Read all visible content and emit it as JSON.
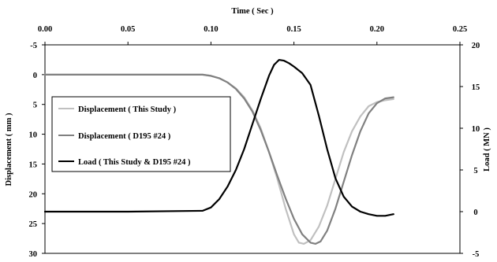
{
  "chart_data": {
    "type": "line",
    "xlabel": "Time ( Sec )",
    "ylabel": "Displacement ( mm )",
    "y2label": "Load ( MN )",
    "xlim": [
      0,
      0.25
    ],
    "ylim": [
      -5,
      30
    ],
    "y_inverted": true,
    "y2lim": [
      -5,
      20
    ],
    "x_ticks": [
      "0.00",
      "0.05",
      "0.10",
      "0.15",
      "0.20",
      "0.25"
    ],
    "y_ticks": [
      "-5",
      "0",
      "5",
      "10",
      "15",
      "20",
      "25",
      "30"
    ],
    "y2_ticks": [
      "-5",
      "0",
      "5",
      "10",
      "15",
      "20"
    ],
    "grid": false,
    "legend_position": "left",
    "series": [
      {
        "name": "Displacement ( This Study )",
        "axis": "left",
        "color": "#c0c0c0",
        "x": [
          0,
          0.05,
          0.095,
          0.1,
          0.105,
          0.11,
          0.115,
          0.12,
          0.125,
          0.13,
          0.135,
          0.14,
          0.145,
          0.15,
          0.153,
          0.156,
          0.16,
          0.165,
          0.17,
          0.175,
          0.18,
          0.185,
          0.19,
          0.195,
          0.2,
          0.205,
          0.21
        ],
        "values": [
          0,
          0,
          0,
          0.2,
          0.6,
          1.3,
          2.3,
          3.8,
          6.0,
          9.0,
          13.0,
          17.5,
          22.5,
          26.8,
          28.2,
          28.4,
          27.8,
          25.5,
          22.0,
          17.5,
          13.0,
          9.5,
          7.0,
          5.3,
          4.6,
          4.3,
          4.1
        ]
      },
      {
        "name": "Displacement ( D195 #24 )",
        "axis": "left",
        "color": "#808080",
        "x": [
          0,
          0.05,
          0.095,
          0.1,
          0.105,
          0.11,
          0.115,
          0.12,
          0.125,
          0.13,
          0.135,
          0.14,
          0.145,
          0.15,
          0.155,
          0.16,
          0.163,
          0.166,
          0.17,
          0.175,
          0.18,
          0.185,
          0.19,
          0.195,
          0.2,
          0.205,
          0.21
        ],
        "values": [
          0,
          0,
          0,
          0.2,
          0.6,
          1.3,
          2.4,
          4.0,
          6.2,
          9.3,
          13.0,
          17.0,
          20.8,
          24.2,
          26.8,
          28.2,
          28.4,
          28.0,
          26.2,
          22.5,
          18.0,
          13.5,
          9.5,
          6.5,
          4.8,
          4.0,
          3.8
        ]
      },
      {
        "name": "Load ( This Study & D195 #24 )",
        "axis": "right",
        "color": "#000000",
        "x": [
          0,
          0.05,
          0.095,
          0.1,
          0.105,
          0.11,
          0.115,
          0.12,
          0.125,
          0.13,
          0.135,
          0.138,
          0.141,
          0.144,
          0.147,
          0.15,
          0.155,
          0.16,
          0.165,
          0.17,
          0.175,
          0.18,
          0.185,
          0.19,
          0.195,
          0.2,
          0.205,
          0.21
        ],
        "values": [
          0,
          0,
          0.1,
          0.5,
          1.5,
          3.0,
          5.0,
          7.5,
          10.5,
          13.5,
          16.3,
          17.6,
          18.2,
          18.1,
          17.8,
          17.4,
          16.6,
          15.2,
          11.5,
          7.5,
          4.0,
          1.8,
          0.6,
          0.0,
          -0.3,
          -0.5,
          -0.5,
          -0.3
        ]
      }
    ]
  }
}
